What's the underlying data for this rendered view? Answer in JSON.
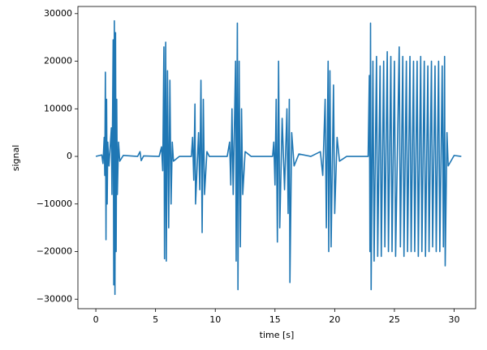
{
  "chart_data": {
    "type": "line",
    "xlabel": "time [s]",
    "ylabel": "signal",
    "x": [
      0,
      0.5,
      0.6,
      0.7,
      0.75,
      0.8,
      0.85,
      0.9,
      0.95,
      1.0,
      1.1,
      1.3,
      1.35,
      1.45,
      1.5,
      1.55,
      1.6,
      1.65,
      1.7,
      1.75,
      1.8,
      1.9,
      2.0,
      2.3,
      3.5,
      3.7,
      3.8,
      4.0,
      5.3,
      5.5,
      5.6,
      5.7,
      5.75,
      5.85,
      5.9,
      6.0,
      6.1,
      6.2,
      6.3,
      6.4,
      6.5,
      7.0,
      8.0,
      8.1,
      8.2,
      8.3,
      8.35,
      8.6,
      8.7,
      8.8,
      8.9,
      9.0,
      9.1,
      9.3,
      9.5,
      11.0,
      11.2,
      11.3,
      11.4,
      11.5,
      11.7,
      11.75,
      11.85,
      11.9,
      12.0,
      12.1,
      12.2,
      12.3,
      12.5,
      13.0,
      14.8,
      14.9,
      15.0,
      15.1,
      15.2,
      15.3,
      15.4,
      15.6,
      15.8,
      16.0,
      16.1,
      16.2,
      16.25,
      16.4,
      16.6,
      17.0,
      18.0,
      18.8,
      19.0,
      19.2,
      19.3,
      19.45,
      19.5,
      19.6,
      19.7,
      19.9,
      20.0,
      20.2,
      20.4,
      21.0,
      22.8,
      22.9,
      22.95,
      23.0,
      23.05,
      23.2,
      23.3,
      23.5,
      23.6,
      23.8,
      23.9,
      24.1,
      24.2,
      24.4,
      24.5,
      24.7,
      24.8,
      25.0,
      25.1,
      25.4,
      25.5,
      25.7,
      25.8,
      26.0,
      26.1,
      26.3,
      26.4,
      26.6,
      26.7,
      26.9,
      27.0,
      27.2,
      27.3,
      27.5,
      27.6,
      27.8,
      27.9,
      28.1,
      28.2,
      28.4,
      28.5,
      28.7,
      28.8,
      29.0,
      29.1,
      29.2,
      29.25,
      29.4,
      29.5,
      30.0,
      30.6
    ],
    "series": [
      {
        "color": "#1f77b4",
        "values": [
          0,
          300,
          -1500,
          4000,
          -4000,
          17700,
          -17500,
          12000,
          -10000,
          3000,
          -2000,
          6000,
          -8000,
          24500,
          -27000,
          28500,
          -29000,
          26000,
          -20000,
          12000,
          -8000,
          3000,
          -1000,
          200,
          0,
          1000,
          -900,
          100,
          0,
          2000,
          -3000,
          23000,
          -21500,
          24000,
          -22000,
          18000,
          -15000,
          16000,
          -10000,
          3000,
          -1000,
          0,
          0,
          4000,
          -5000,
          11000,
          -10000,
          5000,
          -7000,
          16000,
          -16000,
          12000,
          -8000,
          1000,
          0,
          0,
          3000,
          -6000,
          10000,
          -8000,
          20000,
          -22000,
          28000,
          -28000,
          20000,
          -19000,
          10000,
          -8000,
          1000,
          0,
          0,
          3000,
          -6000,
          12000,
          -18000,
          20000,
          -15000,
          8000,
          -7000,
          10000,
          -12000,
          12000,
          -26500,
          5000,
          -2000,
          500,
          0,
          1000,
          -4000,
          12000,
          -15000,
          20000,
          -20000,
          18000,
          -19000,
          15000,
          -12000,
          4000,
          -1000,
          0,
          0,
          17000,
          -20000,
          28000,
          -28000,
          20000,
          -22000,
          21000,
          -21000,
          19000,
          -21000,
          20000,
          -19000,
          22000,
          -20000,
          21000,
          -20000,
          20000,
          -21000,
          23000,
          -19000,
          21000,
          -21000,
          20000,
          -20000,
          21000,
          -20000,
          20000,
          -20000,
          20000,
          -21000,
          21000,
          -20000,
          20000,
          -21000,
          19000,
          -20000,
          20000,
          -19000,
          19000,
          -20000,
          20000,
          -20000,
          19000,
          -19000,
          21000,
          -23000,
          5000,
          -2000,
          200,
          0
        ]
      }
    ],
    "xlim": [
      -1.5,
      31.8
    ],
    "xticks": [
      0,
      5,
      10,
      15,
      20,
      25,
      30
    ],
    "ylim": [
      -32000,
      31500
    ],
    "yticks": [
      {
        "value": -30000,
        "label": "−30000"
      },
      {
        "value": -20000,
        "label": "−20000"
      },
      {
        "value": -10000,
        "label": "−10000"
      },
      0,
      10000,
      20000,
      30000
    ],
    "grid": false
  }
}
